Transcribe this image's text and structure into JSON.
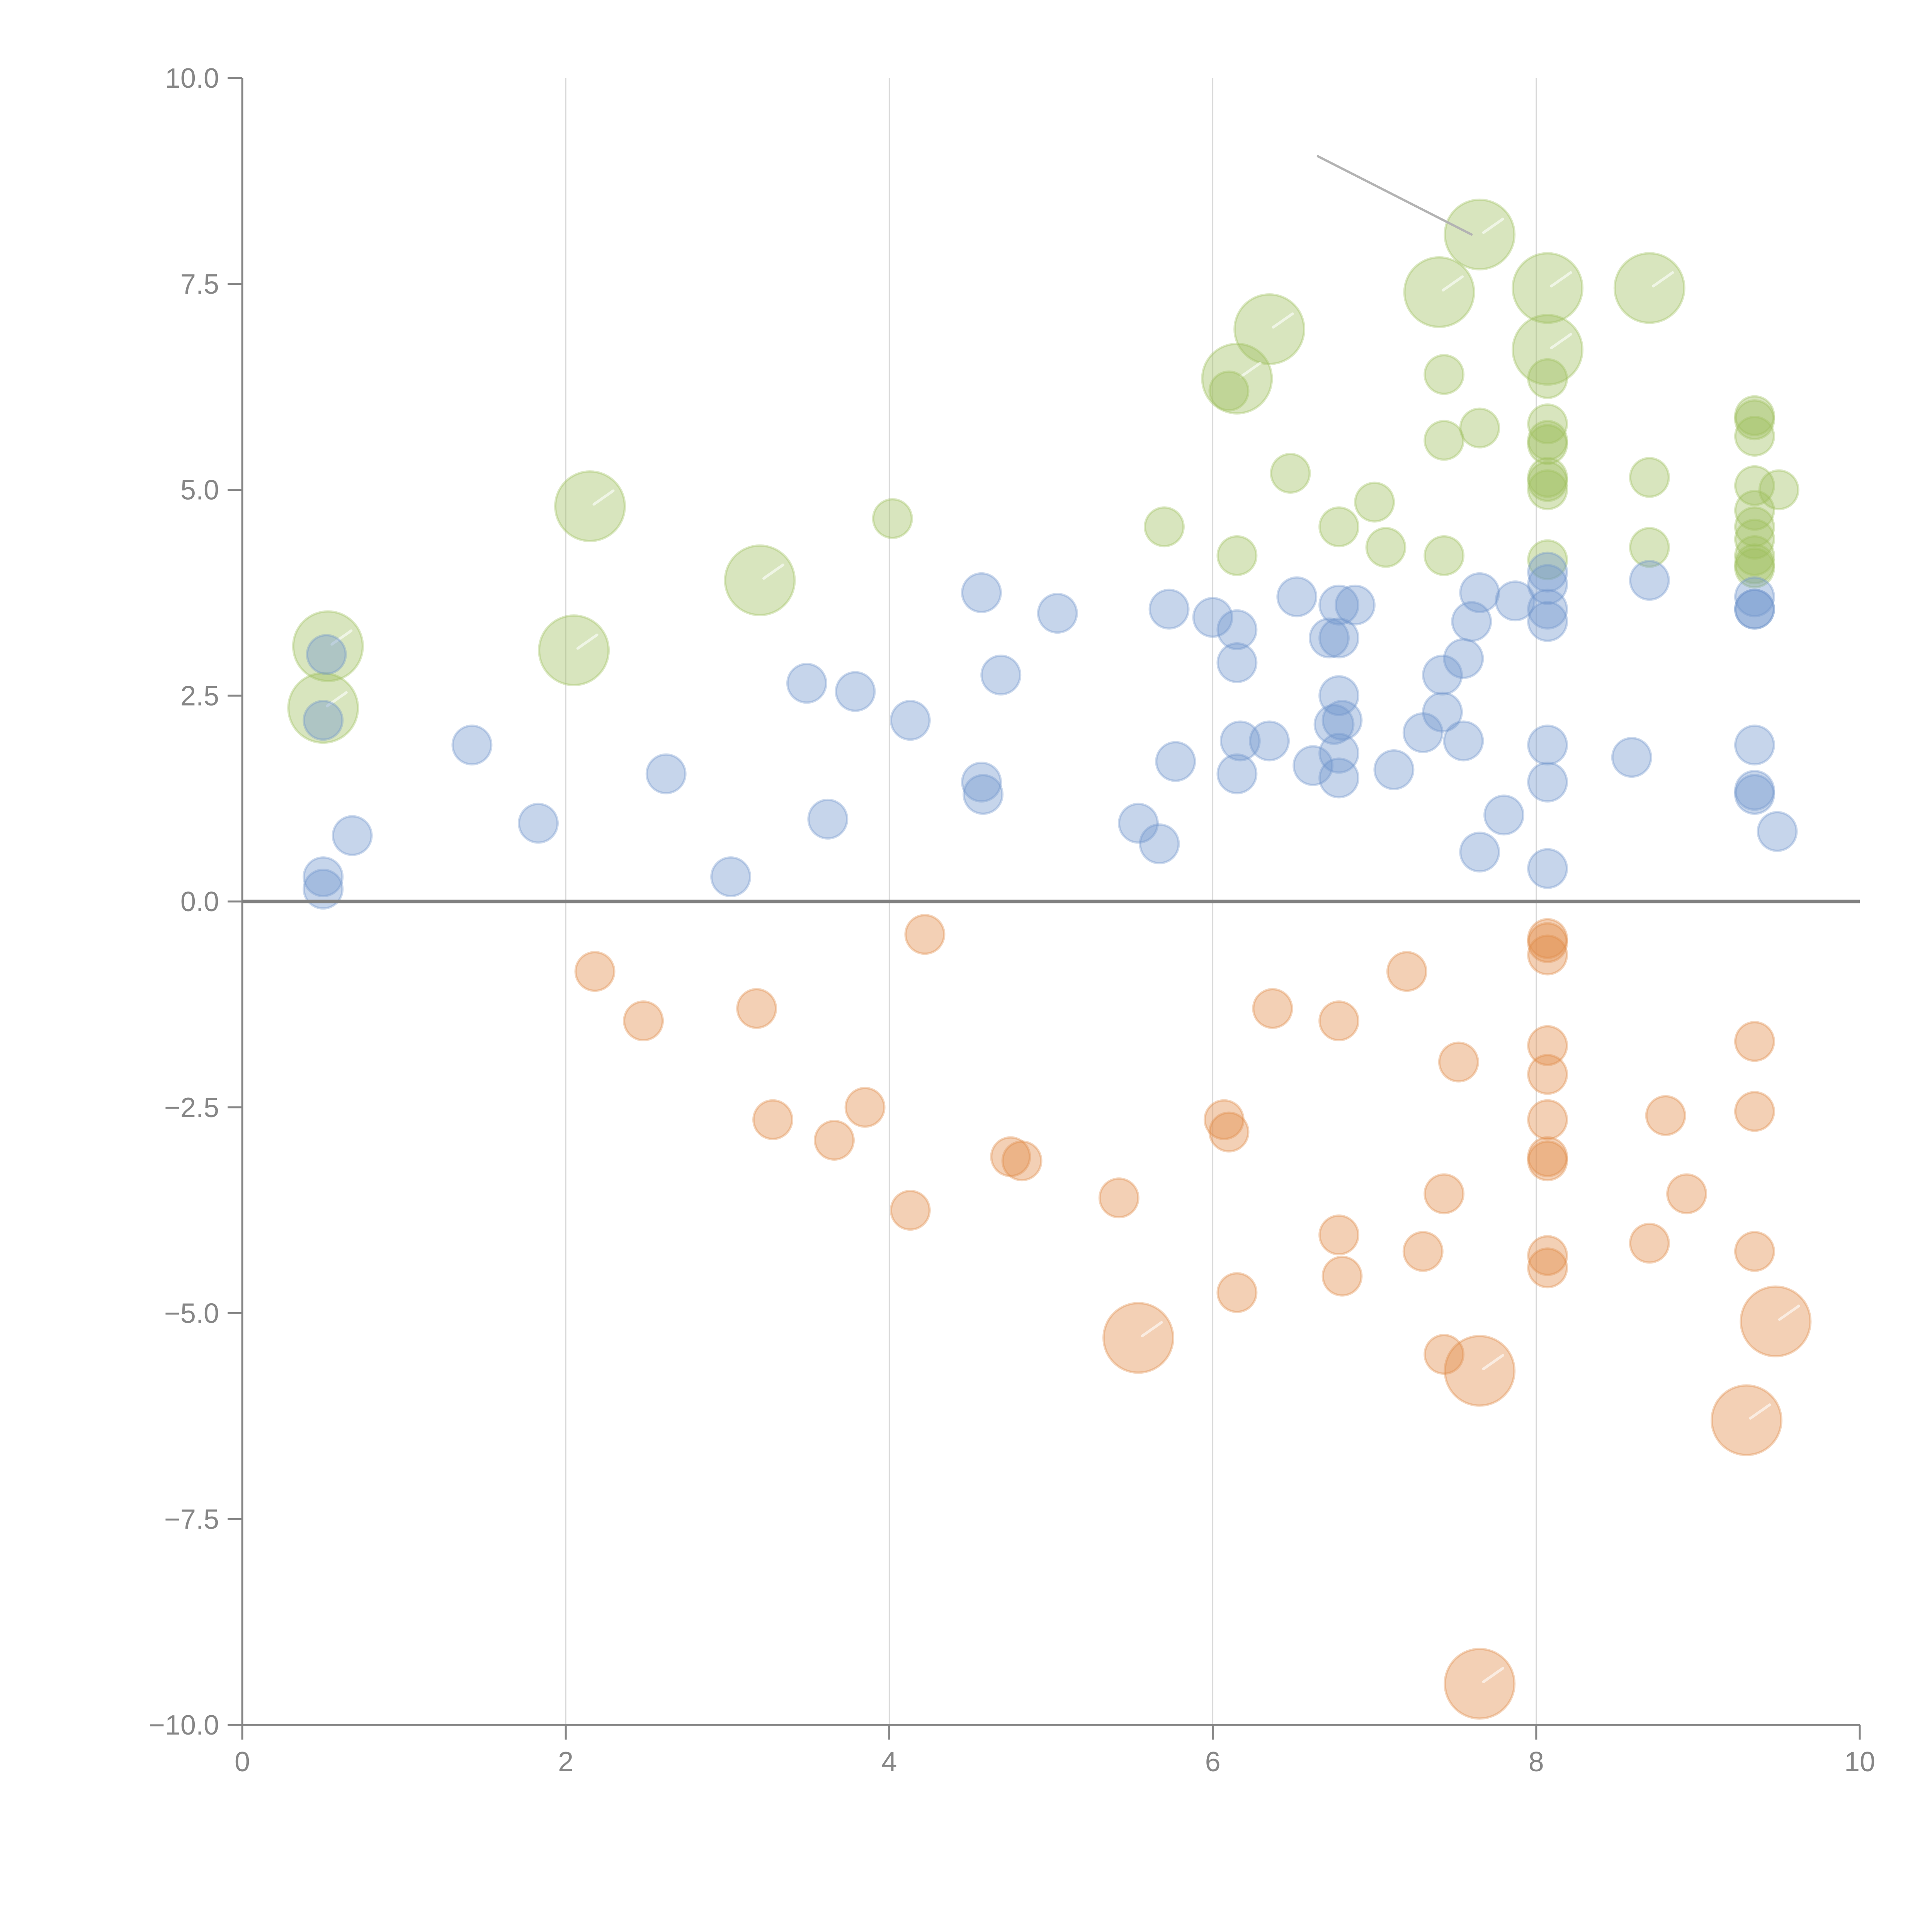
{
  "chart_data": {
    "type": "scatter",
    "title": "",
    "xlabel": "",
    "ylabel": "",
    "xlim": [
      0,
      10
    ],
    "ylim": [
      -10,
      10
    ],
    "x_ticks": [
      0,
      2,
      4,
      6,
      8,
      10
    ],
    "x_tick_labels": [
      "0",
      "2",
      "4",
      "6",
      "8",
      "10"
    ],
    "y_ticks": [
      10,
      7.5,
      5,
      2.5,
      0,
      -2.5,
      -5,
      -7.5,
      -10
    ],
    "y_tick_labels": [
      "10.0",
      "7.5",
      "5.0",
      "2.5",
      "0.0",
      "−2.5",
      "−5.0",
      "−7.5",
      "−10.0"
    ],
    "grid": "vertical",
    "zero_line": true,
    "legend": "none",
    "size_encoding": {
      "small": 1,
      "large": 3.5
    },
    "series": [
      {
        "name": "green",
        "color": "#9dbf5c",
        "points": [
          [
            0.53,
            3.1,
            3.5
          ],
          [
            0.5,
            2.35,
            3.5
          ],
          [
            2.15,
            4.8,
            3.5
          ],
          [
            2.05,
            3.05,
            3.5
          ],
          [
            3.2,
            3.9,
            3.5
          ],
          [
            6.35,
            6.95,
            3.5
          ],
          [
            6.15,
            6.35,
            3.5
          ],
          [
            7.4,
            7.4,
            3.5
          ],
          [
            7.65,
            8.1,
            3.5
          ],
          [
            8.07,
            7.45,
            3.5
          ],
          [
            8.07,
            6.7,
            3.5
          ],
          [
            8.7,
            7.45,
            3.5
          ],
          [
            4.02,
            4.65,
            1
          ],
          [
            5.7,
            4.55,
            1
          ],
          [
            6.15,
            4.2,
            1
          ],
          [
            6.48,
            5.2,
            1
          ],
          [
            6.78,
            4.55,
            1
          ],
          [
            7.0,
            4.85,
            1
          ],
          [
            7.07,
            4.3,
            1
          ],
          [
            7.43,
            6.4,
            1
          ],
          [
            7.43,
            5.6,
            1
          ],
          [
            7.43,
            4.2,
            1
          ],
          [
            7.65,
            5.75,
            1
          ],
          [
            6.1,
            6.2,
            1
          ],
          [
            8.07,
            6.35,
            1
          ],
          [
            8.07,
            5.8,
            1
          ],
          [
            8.07,
            5.6,
            1
          ],
          [
            8.07,
            5.55,
            1
          ],
          [
            8.07,
            5.15,
            1
          ],
          [
            8.07,
            5.1,
            1
          ],
          [
            8.07,
            5.0,
            1
          ],
          [
            8.07,
            4.15,
            1
          ],
          [
            8.7,
            5.15,
            1
          ],
          [
            8.7,
            4.3,
            1
          ],
          [
            9.35,
            5.9,
            1
          ],
          [
            9.35,
            5.85,
            1
          ],
          [
            9.35,
            5.65,
            1
          ],
          [
            9.35,
            5.05,
            1
          ],
          [
            9.5,
            5.0,
            1
          ],
          [
            9.35,
            4.75,
            1
          ],
          [
            9.35,
            4.55,
            1
          ],
          [
            9.35,
            4.4,
            1
          ],
          [
            9.35,
            4.2,
            1
          ],
          [
            9.35,
            4.1,
            1
          ],
          [
            9.35,
            4.05,
            1
          ]
        ]
      },
      {
        "name": "blue",
        "color": "#7096cc",
        "points": [
          [
            0.52,
            3.0,
            1
          ],
          [
            0.5,
            2.2,
            1
          ],
          [
            0.5,
            0.3,
            1
          ],
          [
            0.5,
            0.15,
            1
          ],
          [
            0.68,
            0.8,
            1
          ],
          [
            1.42,
            1.9,
            1
          ],
          [
            1.83,
            0.95,
            1
          ],
          [
            2.62,
            1.55,
            1
          ],
          [
            3.02,
            0.3,
            1
          ],
          [
            3.49,
            2.65,
            1
          ],
          [
            3.62,
            1.0,
            1
          ],
          [
            3.79,
            2.55,
            1
          ],
          [
            4.13,
            2.2,
            1
          ],
          [
            4.57,
            3.75,
            1
          ],
          [
            4.57,
            1.45,
            1
          ],
          [
            4.58,
            1.3,
            1
          ],
          [
            4.69,
            2.75,
            1
          ],
          [
            5.04,
            3.5,
            1
          ],
          [
            5.54,
            0.95,
            1
          ],
          [
            5.67,
            0.7,
            1
          ],
          [
            5.73,
            3.55,
            1
          ],
          [
            5.77,
            1.7,
            1
          ],
          [
            6.0,
            3.45,
            1
          ],
          [
            6.15,
            3.3,
            1
          ],
          [
            6.15,
            2.9,
            1
          ],
          [
            6.17,
            1.95,
            1
          ],
          [
            6.15,
            1.55,
            1
          ],
          [
            6.35,
            1.95,
            1
          ],
          [
            6.52,
            3.7,
            1
          ],
          [
            6.62,
            1.65,
            1
          ],
          [
            6.72,
            3.2,
            1
          ],
          [
            6.78,
            3.6,
            1
          ],
          [
            6.78,
            3.2,
            1
          ],
          [
            6.88,
            3.6,
            1
          ],
          [
            6.78,
            2.5,
            1
          ],
          [
            6.75,
            2.15,
            1
          ],
          [
            6.8,
            2.2,
            1
          ],
          [
            6.78,
            1.8,
            1
          ],
          [
            6.78,
            1.5,
            1
          ],
          [
            7.12,
            1.6,
            1
          ],
          [
            7.3,
            2.05,
            1
          ],
          [
            7.42,
            2.75,
            1
          ],
          [
            7.42,
            2.3,
            1
          ],
          [
            7.55,
            2.95,
            1
          ],
          [
            7.55,
            1.95,
            1
          ],
          [
            7.6,
            3.4,
            1
          ],
          [
            7.65,
            3.75,
            1
          ],
          [
            7.65,
            0.6,
            1
          ],
          [
            7.8,
            1.05,
            1
          ],
          [
            7.87,
            3.65,
            1
          ],
          [
            8.07,
            4.0,
            1
          ],
          [
            8.07,
            3.85,
            1
          ],
          [
            8.07,
            3.55,
            1
          ],
          [
            8.07,
            3.4,
            1
          ],
          [
            8.07,
            1.9,
            1
          ],
          [
            8.07,
            1.45,
            1
          ],
          [
            8.07,
            0.4,
            1
          ],
          [
            8.59,
            1.75,
            1
          ],
          [
            8.7,
            3.9,
            1
          ],
          [
            9.35,
            3.7,
            1
          ],
          [
            9.35,
            3.55,
            1
          ],
          [
            9.35,
            3.55,
            1
          ],
          [
            9.35,
            1.9,
            1
          ],
          [
            9.35,
            1.35,
            1
          ],
          [
            9.35,
            1.3,
            1
          ],
          [
            9.49,
            0.85,
            1
          ]
        ]
      },
      {
        "name": "orange",
        "color": "#e08a45",
        "points": [
          [
            2.18,
            -0.85,
            1
          ],
          [
            2.48,
            -1.45,
            1
          ],
          [
            3.18,
            -1.3,
            1
          ],
          [
            3.28,
            -2.65,
            1
          ],
          [
            3.66,
            -2.9,
            1
          ],
          [
            3.85,
            -2.5,
            1
          ],
          [
            4.13,
            -3.75,
            1
          ],
          [
            4.22,
            -0.4,
            1
          ],
          [
            4.75,
            -3.1,
            1
          ],
          [
            4.82,
            -3.15,
            1
          ],
          [
            5.42,
            -3.6,
            1
          ],
          [
            5.54,
            -5.3,
            3.5
          ],
          [
            6.07,
            -2.65,
            1
          ],
          [
            6.1,
            -2.8,
            1
          ],
          [
            6.15,
            -4.75,
            1
          ],
          [
            6.37,
            -1.3,
            1
          ],
          [
            6.78,
            -1.45,
            1
          ],
          [
            6.78,
            -4.05,
            1
          ],
          [
            6.8,
            -4.55,
            1
          ],
          [
            7.2,
            -0.85,
            1
          ],
          [
            7.3,
            -4.25,
            1
          ],
          [
            7.43,
            -3.55,
            1
          ],
          [
            7.43,
            -5.5,
            1
          ],
          [
            7.52,
            -1.95,
            1
          ],
          [
            7.65,
            -5.7,
            3.5
          ],
          [
            7.65,
            -9.5,
            3.5
          ],
          [
            8.07,
            -0.45,
            1
          ],
          [
            8.07,
            -0.5,
            1
          ],
          [
            8.07,
            -0.65,
            1
          ],
          [
            8.07,
            -1.75,
            1
          ],
          [
            8.07,
            -2.1,
            1
          ],
          [
            8.07,
            -2.65,
            1
          ],
          [
            8.07,
            -3.1,
            1
          ],
          [
            8.07,
            -3.15,
            1
          ],
          [
            8.07,
            -4.3,
            1
          ],
          [
            8.07,
            -4.45,
            1
          ],
          [
            8.7,
            -4.15,
            1
          ],
          [
            8.8,
            -2.6,
            1
          ],
          [
            8.93,
            -3.55,
            1
          ],
          [
            9.35,
            -1.7,
            1
          ],
          [
            9.35,
            -2.55,
            1
          ],
          [
            9.35,
            -4.25,
            1
          ],
          [
            9.48,
            -5.1,
            3.5
          ],
          [
            9.3,
            -6.3,
            3.5
          ]
        ]
      }
    ],
    "annotations": [
      {
        "type": "leader-line",
        "from": [
          6.65,
          9.05
        ],
        "to": [
          7.6,
          8.1
        ]
      }
    ]
  }
}
